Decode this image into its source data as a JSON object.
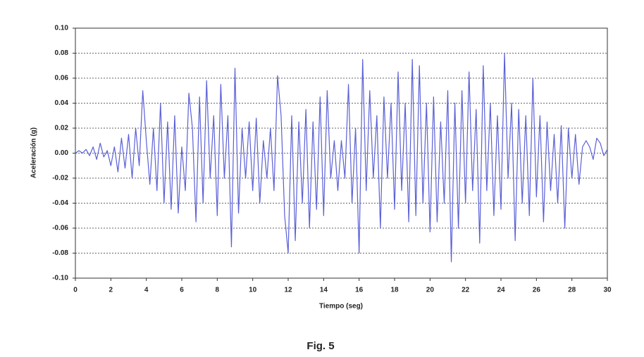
{
  "chart_data": {
    "type": "line",
    "xlabel": "Tiempo (seg)",
    "ylabel": "Aceleración (g)",
    "caption": "Fig. 5",
    "xlim": [
      0,
      30
    ],
    "ylim": [
      -0.1,
      0.1
    ],
    "xticks": [
      0,
      2,
      4,
      6,
      8,
      10,
      12,
      14,
      16,
      18,
      20,
      22,
      24,
      26,
      28,
      30
    ],
    "yticks": [
      {
        "value": 0.1,
        "label": "0.10"
      },
      0.08,
      0.06,
      0.04,
      0.02,
      {
        "value": 0,
        "label": "0.00"
      },
      -0.02,
      -0.04,
      -0.06,
      -0.08,
      {
        "value": -0.1,
        "label": "-0.10"
      }
    ],
    "grid": true,
    "x": [
      0,
      0.2,
      0.4,
      0.6,
      0.8,
      1,
      1.2,
      1.4,
      1.6,
      1.8,
      2,
      2.2,
      2.4,
      2.6,
      2.8,
      3,
      3.2,
      3.4,
      3.6,
      3.8,
      4,
      4.2,
      4.4,
      4.6,
      4.8,
      5,
      5.2,
      5.4,
      5.6,
      5.8,
      6,
      6.2,
      6.4,
      6.6,
      6.8,
      7,
      7.2,
      7.4,
      7.6,
      7.8,
      8,
      8.2,
      8.4,
      8.6,
      8.8,
      9,
      9.2,
      9.4,
      9.6,
      9.8,
      10,
      10.2,
      10.4,
      10.6,
      10.8,
      11,
      11.2,
      11.4,
      11.6,
      11.8,
      12,
      12.2,
      12.4,
      12.6,
      12.8,
      13,
      13.2,
      13.4,
      13.6,
      13.8,
      14,
      14.2,
      14.4,
      14.6,
      14.8,
      15,
      15.2,
      15.4,
      15.6,
      15.8,
      16,
      16.2,
      16.4,
      16.6,
      16.8,
      17,
      17.2,
      17.4,
      17.6,
      17.8,
      18,
      18.2,
      18.4,
      18.6,
      18.8,
      19,
      19.2,
      19.4,
      19.6,
      19.8,
      20,
      20.2,
      20.4,
      20.6,
      20.8,
      21,
      21.2,
      21.4,
      21.6,
      21.8,
      22,
      22.2,
      22.4,
      22.6,
      22.8,
      23,
      23.2,
      23.4,
      23.6,
      23.8,
      24,
      24.2,
      24.4,
      24.6,
      24.8,
      25,
      25.2,
      25.4,
      25.6,
      25.8,
      26,
      26.2,
      26.4,
      26.6,
      26.8,
      27,
      27.2,
      27.4,
      27.6,
      27.8,
      28,
      28.2,
      28.4,
      28.6,
      28.8,
      29,
      29.2,
      29.4,
      29.6,
      29.8,
      30
    ],
    "series": [
      {
        "color": "#5a5fd6",
        "values": [
          0,
          0.002,
          0,
          0.003,
          -0.002,
          0.005,
          -0.005,
          0.008,
          -0.003,
          0.002,
          -0.01,
          0.005,
          -0.015,
          0.012,
          -0.012,
          0.015,
          -0.02,
          0.02,
          -0.01,
          0.05,
          0.01,
          -0.025,
          0.02,
          -0.03,
          0.04,
          -0.04,
          0.025,
          -0.045,
          0.03,
          -0.048,
          0.005,
          -0.03,
          0.048,
          0.02,
          -0.055,
          0.045,
          -0.04,
          0.058,
          -0.02,
          0.03,
          -0.05,
          0.055,
          -0.02,
          0.03,
          -0.075,
          0.068,
          -0.048,
          0.02,
          -0.02,
          0.025,
          -0.03,
          0.028,
          -0.04,
          0.01,
          -0.02,
          0.02,
          -0.03,
          0.062,
          0.03,
          -0.05,
          -0.08,
          0.03,
          -0.07,
          0.025,
          -0.04,
          0.035,
          -0.06,
          0.025,
          -0.045,
          0.045,
          -0.05,
          0.05,
          -0.02,
          0.01,
          -0.03,
          0.01,
          -0.02,
          0.055,
          -0.04,
          0.02,
          -0.08,
          0.075,
          -0.03,
          0.05,
          -0.02,
          0.03,
          -0.06,
          0.045,
          -0.02,
          0.04,
          -0.045,
          0.065,
          -0.03,
          0.04,
          -0.055,
          0.075,
          -0.05,
          0.07,
          -0.04,
          0.04,
          -0.063,
          0.045,
          -0.055,
          0.025,
          -0.04,
          0.05,
          -0.087,
          0.04,
          -0.06,
          0.05,
          -0.04,
          0.065,
          -0.03,
          0.035,
          -0.072,
          0.07,
          -0.03,
          0.04,
          -0.05,
          0.03,
          -0.045,
          0.08,
          -0.02,
          0.04,
          -0.07,
          0.035,
          -0.04,
          0.03,
          -0.05,
          0.06,
          -0.035,
          0.03,
          -0.055,
          0.025,
          -0.03,
          0.015,
          -0.04,
          0.022,
          -0.06,
          0.02,
          -0.02,
          0.015,
          -0.025,
          0.005,
          0.01,
          0.005,
          -0.005,
          0.012,
          0.008,
          -0.002,
          0.003
        ]
      }
    ]
  }
}
